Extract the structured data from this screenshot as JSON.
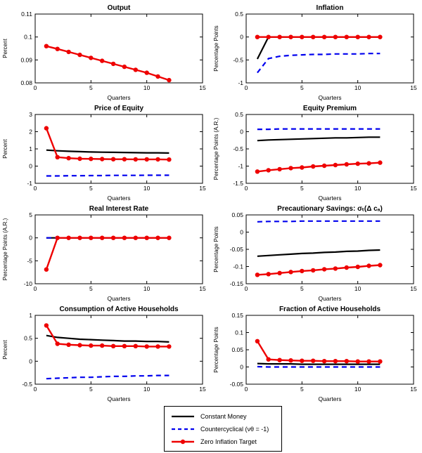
{
  "figure": {
    "bg": "#ffffff",
    "axis_color": "#000000",
    "series_styles": {
      "constant_money": {
        "color": "#000000",
        "dash": "none",
        "marker": "none",
        "width": 2.2
      },
      "countercyclical": {
        "color": "#0000ee",
        "dash": "7,5",
        "marker": "none",
        "width": 2.2
      },
      "zero_inflation": {
        "color": "#ee0000",
        "dash": "none",
        "marker": "circle",
        "width": 2.4
      }
    }
  },
  "legend": {
    "items": [
      {
        "key": "constant_money",
        "label": "Constant Money"
      },
      {
        "key": "countercyclical",
        "label": "Countercyclical (νθ = -1)"
      },
      {
        "key": "zero_inflation",
        "label": "Zero Inflation Target"
      }
    ]
  },
  "chart_data": [
    {
      "type": "line",
      "title": "Output",
      "xlabel": "Quarters",
      "ylabel": "Percent",
      "xlim": [
        0,
        15
      ],
      "ylim": [
        0.08,
        0.11
      ],
      "xticks": [
        0,
        5,
        10,
        15
      ],
      "yticks": [
        0.08,
        0.09,
        0.1,
        0.11
      ],
      "x": [
        1,
        2,
        3,
        4,
        5,
        6,
        7,
        8,
        9,
        10,
        11,
        12
      ],
      "series": [
        {
          "key": "zero_inflation",
          "name": "Zero Inflation Target",
          "values": [
            0.096,
            0.0948,
            0.0935,
            0.0922,
            0.0909,
            0.0896,
            0.0883,
            0.087,
            0.0857,
            0.0844,
            0.0828,
            0.0812
          ]
        }
      ]
    },
    {
      "type": "line",
      "title": "Inflation",
      "xlabel": "Quarters",
      "ylabel": "Percentage Points",
      "xlim": [
        0,
        15
      ],
      "ylim": [
        -1,
        0.5
      ],
      "xticks": [
        0,
        5,
        10,
        15
      ],
      "yticks": [
        -1,
        -0.5,
        0,
        0.5
      ],
      "x": [
        1,
        2,
        3,
        4,
        5,
        6,
        7,
        8,
        9,
        10,
        11,
        12
      ],
      "series": [
        {
          "key": "constant_money",
          "name": "Constant Money",
          "values": [
            -0.48,
            0,
            0,
            0,
            0,
            0,
            0,
            0,
            0,
            0,
            0,
            0
          ]
        },
        {
          "key": "countercyclical",
          "name": "Countercyclical (νθ = -1)",
          "values": [
            -0.78,
            -0.47,
            -0.42,
            -0.4,
            -0.39,
            -0.38,
            -0.38,
            -0.37,
            -0.37,
            -0.37,
            -0.36,
            -0.36
          ]
        },
        {
          "key": "zero_inflation",
          "name": "Zero Inflation Target",
          "values": [
            0,
            0,
            0,
            0,
            0,
            0,
            0,
            0,
            0,
            0,
            0,
            0
          ]
        }
      ]
    },
    {
      "type": "line",
      "title": "Price of Equity",
      "xlabel": "Quarters",
      "ylabel": "Percent",
      "xlim": [
        0,
        15
      ],
      "ylim": [
        -1,
        3
      ],
      "xticks": [
        0,
        5,
        10,
        15
      ],
      "yticks": [
        -1,
        0,
        1,
        2,
        3
      ],
      "x": [
        1,
        2,
        3,
        4,
        5,
        6,
        7,
        8,
        9,
        10,
        11,
        12
      ],
      "series": [
        {
          "key": "constant_money",
          "name": "Constant Money",
          "values": [
            0.93,
            0.89,
            0.86,
            0.84,
            0.82,
            0.81,
            0.8,
            0.79,
            0.78,
            0.77,
            0.77,
            0.76
          ]
        },
        {
          "key": "countercyclical",
          "name": "Countercyclical (νθ = -1)",
          "values": [
            -0.57,
            -0.57,
            -0.56,
            -0.56,
            -0.55,
            -0.55,
            -0.54,
            -0.54,
            -0.54,
            -0.53,
            -0.53,
            -0.53
          ]
        },
        {
          "key": "zero_inflation",
          "name": "Zero Inflation Target",
          "values": [
            2.2,
            0.52,
            0.46,
            0.43,
            0.42,
            0.41,
            0.4,
            0.4,
            0.39,
            0.39,
            0.39,
            0.38
          ]
        }
      ]
    },
    {
      "type": "line",
      "title": "Equity Premium",
      "xlabel": "Quarters",
      "ylabel": "Percentage Points (A.R.)",
      "xlim": [
        0,
        15
      ],
      "ylim": [
        -1.5,
        0.5
      ],
      "xticks": [
        0,
        5,
        10,
        15
      ],
      "yticks": [
        -1.5,
        -1,
        -0.5,
        0,
        0.5
      ],
      "x": [
        1,
        2,
        3,
        4,
        5,
        6,
        7,
        8,
        9,
        10,
        11,
        12
      ],
      "series": [
        {
          "key": "constant_money",
          "name": "Constant Money",
          "values": [
            -0.26,
            -0.24,
            -0.23,
            -0.22,
            -0.21,
            -0.2,
            -0.19,
            -0.18,
            -0.18,
            -0.17,
            -0.16,
            -0.16
          ]
        },
        {
          "key": "countercyclical",
          "name": "Countercyclical (νθ = -1)",
          "values": [
            0.07,
            0.07,
            0.08,
            0.08,
            0.08,
            0.08,
            0.08,
            0.08,
            0.08,
            0.08,
            0.08,
            0.08
          ]
        },
        {
          "key": "zero_inflation",
          "name": "Zero Inflation Target",
          "values": [
            -1.16,
            -1.12,
            -1.09,
            -1.06,
            -1.04,
            -1.01,
            -0.99,
            -0.97,
            -0.95,
            -0.93,
            -0.92,
            -0.9
          ]
        }
      ]
    },
    {
      "type": "line",
      "title": "Real Interest Rate",
      "xlabel": "Quarters",
      "ylabel": "Percentage Points (A.R.)",
      "xlim": [
        0,
        15
      ],
      "ylim": [
        -10,
        5
      ],
      "xticks": [
        0,
        5,
        10,
        15
      ],
      "yticks": [
        -10,
        -5,
        0,
        5
      ],
      "x": [
        1,
        2,
        3,
        4,
        5,
        6,
        7,
        8,
        9,
        10,
        11,
        12
      ],
      "series": [
        {
          "key": "constant_money",
          "name": "Constant Money",
          "values": [
            0,
            0,
            0,
            0,
            0,
            0,
            0,
            0,
            0,
            0,
            0,
            0
          ]
        },
        {
          "key": "countercyclical",
          "name": "Countercyclical (νθ = -1)",
          "values": [
            0,
            0,
            0,
            0,
            0,
            0,
            0,
            0,
            0,
            0,
            0,
            0
          ]
        },
        {
          "key": "zero_inflation",
          "name": "Zero Inflation Target",
          "values": [
            -6.9,
            0,
            0,
            0,
            0,
            0,
            0,
            0,
            0,
            0,
            0,
            0
          ]
        }
      ]
    },
    {
      "type": "line",
      "title": "Precautionary Savings:  σₜ(Δ cₐ)",
      "xlabel": "Quarters",
      "ylabel": "Percentage Points",
      "xlim": [
        0,
        15
      ],
      "ylim": [
        -0.15,
        0.05
      ],
      "xticks": [
        0,
        5,
        10,
        15
      ],
      "yticks": [
        -0.15,
        -0.1,
        -0.05,
        0,
        0.05
      ],
      "x": [
        1,
        2,
        3,
        4,
        5,
        6,
        7,
        8,
        9,
        10,
        11,
        12
      ],
      "series": [
        {
          "key": "constant_money",
          "name": "Constant Money",
          "values": [
            -0.07,
            -0.068,
            -0.066,
            -0.064,
            -0.062,
            -0.061,
            -0.059,
            -0.058,
            -0.056,
            -0.055,
            -0.053,
            -0.052
          ]
        },
        {
          "key": "countercyclical",
          "name": "Countercyclical (νθ = -1)",
          "values": [
            0.03,
            0.031,
            0.031,
            0.031,
            0.032,
            0.032,
            0.032,
            0.032,
            0.032,
            0.032,
            0.032,
            0.032
          ]
        },
        {
          "key": "zero_inflation",
          "name": "Zero Inflation Target",
          "values": [
            -0.124,
            -0.122,
            -0.119,
            -0.116,
            -0.113,
            -0.111,
            -0.108,
            -0.106,
            -0.103,
            -0.101,
            -0.098,
            -0.096
          ]
        }
      ]
    },
    {
      "type": "line",
      "title": "Consumption of Active Households",
      "xlabel": "Quarters",
      "ylabel": "Percent",
      "xlim": [
        0,
        15
      ],
      "ylim": [
        -0.5,
        1
      ],
      "xticks": [
        0,
        5,
        10,
        15
      ],
      "yticks": [
        -0.5,
        0,
        0.5,
        1
      ],
      "x": [
        1,
        2,
        3,
        4,
        5,
        6,
        7,
        8,
        9,
        10,
        11,
        12
      ],
      "series": [
        {
          "key": "constant_money",
          "name": "Constant Money",
          "values": [
            0.56,
            0.52,
            0.5,
            0.48,
            0.47,
            0.46,
            0.45,
            0.44,
            0.44,
            0.43,
            0.43,
            0.42
          ]
        },
        {
          "key": "countercyclical",
          "name": "Countercyclical (νθ = -1)",
          "values": [
            -0.38,
            -0.37,
            -0.36,
            -0.35,
            -0.35,
            -0.34,
            -0.33,
            -0.33,
            -0.32,
            -0.32,
            -0.31,
            -0.31
          ]
        },
        {
          "key": "zero_inflation",
          "name": "Zero Inflation Target",
          "values": [
            0.78,
            0.38,
            0.36,
            0.35,
            0.34,
            0.34,
            0.33,
            0.33,
            0.33,
            0.32,
            0.32,
            0.32
          ]
        }
      ]
    },
    {
      "type": "line",
      "title": "Fraction of Active Households",
      "xlabel": "Quarters",
      "ylabel": "Percentage Points",
      "xlim": [
        0,
        15
      ],
      "ylim": [
        -0.05,
        0.15
      ],
      "xticks": [
        0,
        5,
        10,
        15
      ],
      "yticks": [
        -0.05,
        0,
        0.05,
        0.1,
        0.15
      ],
      "x": [
        1,
        2,
        3,
        4,
        5,
        6,
        7,
        8,
        9,
        10,
        11,
        12
      ],
      "series": [
        {
          "key": "constant_money",
          "name": "Constant Money",
          "values": [
            0.01,
            0.009,
            0.009,
            0.009,
            0.008,
            0.008,
            0.008,
            0.008,
            0.008,
            0.008,
            0.008,
            0.008
          ]
        },
        {
          "key": "countercyclical",
          "name": "Countercyclical (νθ = -1)",
          "values": [
            0.001,
            0,
            0,
            0,
            0,
            0,
            0,
            0,
            0,
            0,
            0,
            0
          ]
        },
        {
          "key": "zero_inflation",
          "name": "Zero Inflation Target",
          "values": [
            0.075,
            0.022,
            0.02,
            0.019,
            0.018,
            0.018,
            0.017,
            0.017,
            0.017,
            0.016,
            0.016,
            0.016
          ]
        }
      ]
    }
  ]
}
